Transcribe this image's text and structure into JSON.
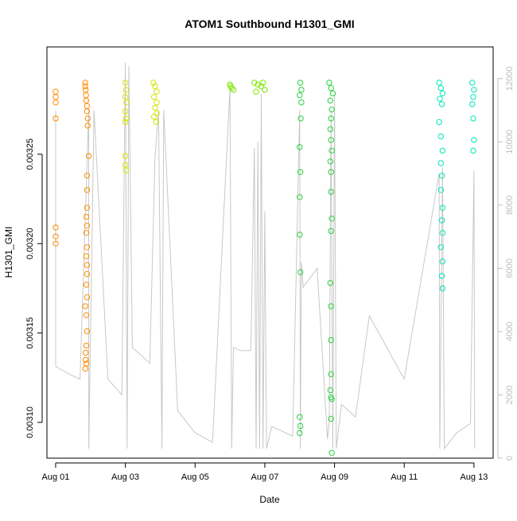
{
  "chart_data": {
    "type": "scatter",
    "title": "ATOM1 Southbound H1301_GMI",
    "xlabel": "Date",
    "ylabel": "H1301_GMI",
    "x_ticks": [
      "Aug 01",
      "Aug 03",
      "Aug 05",
      "Aug 07",
      "Aug 09",
      "Aug 11",
      "Aug 13"
    ],
    "x_range_days": [
      0.75,
      13.55
    ],
    "ylim": [
      0.00308,
      0.00331
    ],
    "y_ticks": [
      {
        "value": 0.0031,
        "label": "0.00310"
      },
      {
        "value": 0.00315,
        "label": "0.00315"
      },
      {
        "value": 0.0032,
        "label": "0.00320"
      },
      {
        "value": 0.00325,
        "label": "0.00325"
      }
    ],
    "y2lim": [
      0,
      13000
    ],
    "y2_ticks": [
      {
        "value": 0,
        "label": "0"
      },
      {
        "value": 2000,
        "label": "2000"
      },
      {
        "value": 4000,
        "label": "4000"
      },
      {
        "value": 6000,
        "label": "6000"
      },
      {
        "value": 8000,
        "label": "8000"
      },
      {
        "value": 10000,
        "label": "10000"
      },
      {
        "value": 12000,
        "label": "12000"
      }
    ],
    "grid": false,
    "series": [
      {
        "color": "#ff8c00",
        "points": [
          [
            1.0,
            0.003285
          ],
          [
            1.0,
            0.003282
          ],
          [
            1.0,
            0.003279
          ],
          [
            1.0,
            0.00327
          ],
          [
            1.0,
            0.003209
          ],
          [
            1.0,
            0.003204
          ],
          [
            1.0,
            0.0032
          ],
          [
            1.85,
            0.00329
          ],
          [
            1.85,
            0.003288
          ],
          [
            1.86,
            0.003286
          ],
          [
            1.87,
            0.003283
          ],
          [
            1.88,
            0.00328
          ],
          [
            1.9,
            0.003277
          ],
          [
            1.9,
            0.003274
          ],
          [
            1.92,
            0.00327
          ],
          [
            1.92,
            0.003266
          ],
          [
            1.95,
            0.003249
          ],
          [
            1.9,
            0.003238
          ],
          [
            1.9,
            0.00323
          ],
          [
            1.9,
            0.00322
          ],
          [
            1.88,
            0.003215
          ],
          [
            1.9,
            0.00321
          ],
          [
            1.88,
            0.003206
          ],
          [
            1.9,
            0.003198
          ],
          [
            1.88,
            0.003193
          ],
          [
            1.9,
            0.003188
          ],
          [
            1.9,
            0.003183
          ],
          [
            1.88,
            0.003177
          ],
          [
            1.9,
            0.00317
          ],
          [
            1.85,
            0.003165
          ],
          [
            1.88,
            0.00316
          ],
          [
            1.9,
            0.003151
          ],
          [
            1.88,
            0.003143
          ],
          [
            1.86,
            0.003139
          ],
          [
            1.86,
            0.003135
          ],
          [
            1.88,
            0.003133
          ],
          [
            1.85,
            0.00313
          ]
        ]
      },
      {
        "color": "#d4e600",
        "points": [
          [
            3.0,
            0.00329
          ],
          [
            3.02,
            0.003286
          ],
          [
            3.0,
            0.003282
          ],
          [
            3.03,
            0.003279
          ],
          [
            3.0,
            0.003274
          ],
          [
            3.02,
            0.00327
          ],
          [
            3.0,
            0.003268
          ],
          [
            3.0,
            0.003249
          ],
          [
            3.0,
            0.003244
          ],
          [
            3.02,
            0.003241
          ],
          [
            3.8,
            0.00329
          ],
          [
            3.85,
            0.003288
          ],
          [
            3.9,
            0.003285
          ],
          [
            3.82,
            0.003282
          ],
          [
            3.9,
            0.003279
          ],
          [
            3.85,
            0.003276
          ],
          [
            3.9,
            0.003273
          ],
          [
            3.82,
            0.003271
          ],
          [
            3.88,
            0.003268
          ]
        ]
      },
      {
        "color": "#7de600",
        "points": [
          [
            6.0,
            0.003289
          ],
          [
            6.05,
            0.003287
          ],
          [
            6.1,
            0.003286
          ],
          [
            6.02,
            0.003288
          ],
          [
            6.7,
            0.00329
          ],
          [
            6.8,
            0.003289
          ],
          [
            6.9,
            0.003288
          ],
          [
            7.0,
            0.003286
          ],
          [
            6.75,
            0.003285
          ],
          [
            6.95,
            0.00329
          ]
        ]
      },
      {
        "color": "#28d33c",
        "points": [
          [
            8.02,
            0.00329
          ],
          [
            8.05,
            0.003286
          ],
          [
            8.0,
            0.003283
          ],
          [
            8.05,
            0.003279
          ],
          [
            8.03,
            0.00327
          ],
          [
            8.0,
            0.003254
          ],
          [
            8.02,
            0.00324
          ],
          [
            8.0,
            0.003226
          ],
          [
            8.0,
            0.003205
          ],
          [
            8.02,
            0.003184
          ],
          [
            8.0,
            0.003103
          ],
          [
            8.02,
            0.003098
          ],
          [
            8.0,
            0.003094
          ],
          [
            8.85,
            0.00329
          ],
          [
            8.9,
            0.003287
          ],
          [
            8.95,
            0.003284
          ],
          [
            8.88,
            0.00328
          ],
          [
            8.92,
            0.003275
          ],
          [
            8.9,
            0.00327
          ],
          [
            8.88,
            0.003264
          ],
          [
            8.9,
            0.003258
          ],
          [
            8.92,
            0.003252
          ],
          [
            8.88,
            0.003246
          ],
          [
            8.9,
            0.00324
          ],
          [
            8.9,
            0.003229
          ],
          [
            8.92,
            0.003214
          ],
          [
            8.9,
            0.003207
          ],
          [
            8.88,
            0.003178
          ],
          [
            8.9,
            0.003165
          ],
          [
            8.9,
            0.003146
          ],
          [
            8.9,
            0.003127
          ],
          [
            8.88,
            0.003118
          ],
          [
            8.9,
            0.003114
          ],
          [
            8.92,
            0.003113
          ],
          [
            8.9,
            0.003102
          ],
          [
            8.92,
            0.003083
          ]
        ]
      },
      {
        "color": "#00e6b8",
        "points": [
          [
            12.0,
            0.00329
          ],
          [
            12.05,
            0.003287
          ],
          [
            12.1,
            0.003284
          ],
          [
            12.02,
            0.003281
          ],
          [
            12.08,
            0.003278
          ],
          [
            12.0,
            0.003268
          ],
          [
            12.05,
            0.00326
          ],
          [
            12.1,
            0.003252
          ],
          [
            12.05,
            0.003245
          ],
          [
            12.08,
            0.003238
          ],
          [
            12.05,
            0.00323
          ],
          [
            12.1,
            0.00322
          ],
          [
            12.08,
            0.003213
          ],
          [
            12.1,
            0.003206
          ],
          [
            12.05,
            0.003198
          ],
          [
            12.1,
            0.00319
          ],
          [
            12.08,
            0.003182
          ],
          [
            12.1,
            0.003175
          ],
          [
            12.95,
            0.00329
          ],
          [
            13.0,
            0.003286
          ],
          [
            12.98,
            0.003282
          ],
          [
            12.95,
            0.003278
          ],
          [
            12.98,
            0.00327
          ],
          [
            13.0,
            0.003258
          ],
          [
            12.98,
            0.003252
          ]
        ]
      }
    ],
    "secondary_line": {
      "color": "#c8c8c8",
      "points": [
        [
          1.0,
          11000
        ],
        [
          1.0,
          2900
        ],
        [
          1.4,
          2650
        ],
        [
          1.7,
          2500
        ],
        [
          1.95,
          11000
        ],
        [
          1.95,
          300
        ],
        [
          2.1,
          11000
        ],
        [
          2.5,
          2500
        ],
        [
          2.9,
          2000
        ],
        [
          3.0,
          12500
        ],
        [
          3.05,
          300
        ],
        [
          3.1,
          12400
        ],
        [
          3.2,
          3500
        ],
        [
          3.7,
          3000
        ],
        [
          3.85,
          9500
        ],
        [
          3.95,
          11000
        ],
        [
          4.05,
          300
        ],
        [
          4.1,
          11000
        ],
        [
          4.5,
          1500
        ],
        [
          5.0,
          800
        ],
        [
          5.5,
          500
        ],
        [
          6.0,
          11700
        ],
        [
          6.05,
          300
        ],
        [
          6.1,
          3500
        ],
        [
          6.3,
          3400
        ],
        [
          6.6,
          3400
        ],
        [
          6.7,
          9800
        ],
        [
          6.75,
          300
        ],
        [
          6.8,
          10000
        ],
        [
          6.85,
          300
        ],
        [
          6.9,
          11500
        ],
        [
          6.95,
          300
        ],
        [
          7.0,
          7800
        ],
        [
          7.05,
          300
        ],
        [
          7.2,
          1000
        ],
        [
          7.8,
          700
        ],
        [
          8.0,
          11000
        ],
        [
          8.02,
          300
        ],
        [
          8.05,
          6200
        ],
        [
          8.1,
          5400
        ],
        [
          8.5,
          6000
        ],
        [
          8.8,
          600
        ],
        [
          8.85,
          1200
        ],
        [
          8.9,
          11000
        ],
        [
          8.95,
          300
        ],
        [
          9.0,
          11500
        ],
        [
          9.05,
          300
        ],
        [
          9.2,
          1700
        ],
        [
          9.6,
          1300
        ],
        [
          10.0,
          4500
        ],
        [
          11.0,
          2500
        ],
        [
          12.0,
          9000
        ],
        [
          12.02,
          300
        ],
        [
          12.1,
          9200
        ],
        [
          12.15,
          300
        ],
        [
          12.5,
          800
        ],
        [
          12.9,
          1100
        ],
        [
          13.0,
          9100
        ],
        [
          13.02,
          300
        ]
      ]
    }
  }
}
